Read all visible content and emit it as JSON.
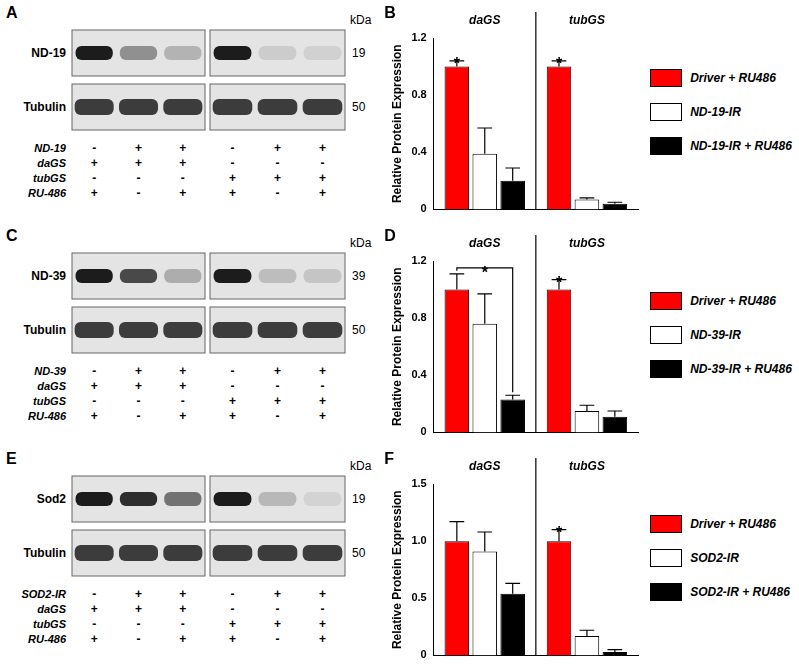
{
  "chart_data": [
    {
      "panel": "B",
      "type": "bar",
      "categories": [
        "daGS",
        "tubGS"
      ],
      "y_label": "Relative Protein Expression",
      "ylim": [
        0,
        1.2
      ],
      "yticks": [
        0,
        0.4,
        0.8,
        1.2
      ],
      "grid": false,
      "legend": "right",
      "series": [
        {
          "name": "Driver + RU486",
          "color": "#ff0000",
          "values": [
            1.0,
            1.0
          ],
          "errors": [
            0.04,
            0.04
          ]
        },
        {
          "name": "ND-19-IR",
          "color": "#ffffff",
          "values": [
            0.39,
            0.07
          ],
          "errors": [
            0.18,
            0.01
          ]
        },
        {
          "name": "ND-19-IR + RU486",
          "color": "#000000",
          "values": [
            0.2,
            0.04
          ],
          "errors": [
            0.09,
            0.01
          ]
        }
      ],
      "annotations": [
        {
          "text": "*",
          "category": "daGS",
          "series": "Driver + RU486"
        },
        {
          "text": "*",
          "category": "tubGS",
          "series": "Driver + RU486"
        }
      ]
    },
    {
      "panel": "D",
      "type": "bar",
      "categories": [
        "daGS",
        "tubGS"
      ],
      "y_label": "Relative Protein Expression",
      "ylim": [
        0,
        1.2
      ],
      "yticks": [
        0,
        0.4,
        0.8,
        1.2
      ],
      "grid": false,
      "legend": "right",
      "series": [
        {
          "name": "Driver + RU486",
          "color": "#ff0000",
          "values": [
            1.0,
            1.0
          ],
          "errors": [
            0.11,
            0.07
          ]
        },
        {
          "name": "ND-39-IR",
          "color": "#ffffff",
          "values": [
            0.76,
            0.15
          ],
          "errors": [
            0.21,
            0.04
          ]
        },
        {
          "name": "ND-39-IR + RU486",
          "color": "#000000",
          "values": [
            0.23,
            0.11
          ],
          "errors": [
            0.03,
            0.04
          ]
        }
      ],
      "annotations": [
        {
          "text": "*",
          "category": "daGS",
          "from": "Driver + RU486",
          "to": "ND-39-IR + RU486"
        },
        {
          "text": "*",
          "category": "tubGS",
          "series": "Driver + RU486"
        }
      ]
    },
    {
      "panel": "F",
      "type": "bar",
      "categories": [
        "daGS",
        "tubGS"
      ],
      "y_label": "Relative Protein Expression",
      "ylim": [
        0,
        1.5
      ],
      "yticks": [
        0,
        0.5,
        {
          "value": 1,
          "label": "1.0"
        },
        1.5
      ],
      "grid": false,
      "legend": "right",
      "series": [
        {
          "name": "Driver + RU486",
          "color": "#ff0000",
          "values": [
            1.0,
            1.0
          ],
          "errors": [
            0.17,
            0.1
          ]
        },
        {
          "name": "SOD2-IR",
          "color": "#ffffff",
          "values": [
            0.91,
            0.17
          ],
          "errors": [
            0.17,
            0.05
          ]
        },
        {
          "name": "SOD2-IR + RU486",
          "color": "#000000",
          "values": [
            0.54,
            0.03
          ],
          "errors": [
            0.09,
            0.02
          ]
        }
      ],
      "annotations": [
        {
          "text": "*",
          "category": "tubGS",
          "series": "Driver + RU486"
        }
      ]
    }
  ],
  "blots": [
    {
      "panel": "A",
      "protein": "ND-19",
      "protein_kda": "19",
      "loading": "Tubulin",
      "loading_kda": "50",
      "unit": "kDa",
      "rows": [
        {
          "label": "ND-19",
          "signs": [
            "-",
            "+",
            "+",
            "-",
            "+",
            "+"
          ]
        },
        {
          "label": "daGS",
          "signs": [
            "+",
            "+",
            "+",
            "-",
            "-",
            "-"
          ]
        },
        {
          "label": "tubGS",
          "signs": [
            "-",
            "-",
            "-",
            "+",
            "+",
            "+"
          ]
        },
        {
          "label": "RU-486",
          "signs": [
            "+",
            "-",
            "+",
            "+",
            "-",
            "+"
          ]
        }
      ]
    },
    {
      "panel": "C",
      "protein": "ND-39",
      "protein_kda": "39",
      "loading": "Tubulin",
      "loading_kda": "50",
      "unit": "kDa",
      "rows": [
        {
          "label": "ND-39",
          "signs": [
            "-",
            "+",
            "+",
            "-",
            "+",
            "+"
          ]
        },
        {
          "label": "daGS",
          "signs": [
            "+",
            "+",
            "+",
            "-",
            "-",
            "-"
          ]
        },
        {
          "label": "tubGS",
          "signs": [
            "-",
            "-",
            "-",
            "+",
            "+",
            "+"
          ]
        },
        {
          "label": "RU-486",
          "signs": [
            "+",
            "-",
            "+",
            "+",
            "-",
            "+"
          ]
        }
      ]
    },
    {
      "panel": "E",
      "protein": "Sod2",
      "protein_kda": "19",
      "loading": "Tubulin",
      "loading_kda": "50",
      "unit": "kDa",
      "rows": [
        {
          "label": "SOD2-IR",
          "signs": [
            "-",
            "+",
            "+",
            "-",
            "+",
            "+"
          ]
        },
        {
          "label": "daGS",
          "signs": [
            "+",
            "+",
            "+",
            "-",
            "-",
            "-"
          ]
        },
        {
          "label": "tubGS",
          "signs": [
            "-",
            "-",
            "-",
            "+",
            "+",
            "+"
          ]
        },
        {
          "label": "RU-486",
          "signs": [
            "+",
            "-",
            "+",
            "+",
            "-",
            "+"
          ]
        }
      ]
    }
  ]
}
